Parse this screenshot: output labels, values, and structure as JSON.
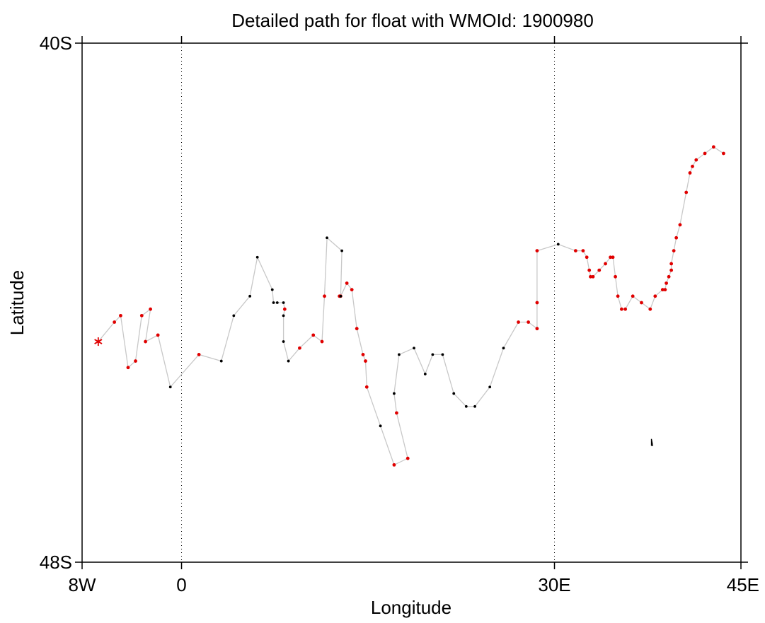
{
  "chart_data": {
    "type": "line",
    "title": "Detailed path for float with WMOId: 1900980",
    "xlabel": "Longitude",
    "ylabel": "Latitude",
    "xlim": [
      -8,
      45
    ],
    "ylim": [
      -48,
      -40
    ],
    "x_ticks": [
      {
        "value": -8,
        "label": "8W"
      },
      {
        "value": 0,
        "label": "0"
      },
      {
        "value": 30,
        "label": "30E"
      },
      {
        "value": 45,
        "label": "45E"
      }
    ],
    "y_ticks": [
      {
        "value": -40,
        "label": "40S"
      },
      {
        "value": -48,
        "label": "48S"
      }
    ],
    "grid": "dotted vertical lines at 0 and 30E",
    "start_marker": {
      "lon": -6.7,
      "lat": -44.6
    },
    "path": [
      {
        "lon": -6.7,
        "lat": -44.6,
        "c": "r"
      },
      {
        "lon": -5.4,
        "lat": -44.3,
        "c": "r"
      },
      {
        "lon": -4.9,
        "lat": -44.2,
        "c": "r"
      },
      {
        "lon": -4.3,
        "lat": -45.0,
        "c": "r"
      },
      {
        "lon": -3.7,
        "lat": -44.9,
        "c": "r"
      },
      {
        "lon": -3.2,
        "lat": -44.2,
        "c": "r"
      },
      {
        "lon": -2.5,
        "lat": -44.1,
        "c": "r"
      },
      {
        "lon": -2.9,
        "lat": -44.6,
        "c": "r"
      },
      {
        "lon": -1.9,
        "lat": -44.5,
        "c": "r"
      },
      {
        "lon": -0.9,
        "lat": -45.3,
        "c": "k"
      },
      {
        "lon": 1.4,
        "lat": -44.8,
        "c": "r"
      },
      {
        "lon": 3.2,
        "lat": -44.9,
        "c": "k"
      },
      {
        "lon": 4.2,
        "lat": -44.2,
        "c": "k"
      },
      {
        "lon": 5.5,
        "lat": -43.9,
        "c": "k"
      },
      {
        "lon": 6.1,
        "lat": -43.3,
        "c": "k"
      },
      {
        "lon": 7.3,
        "lat": -43.8,
        "c": "k"
      },
      {
        "lon": 7.4,
        "lat": -44.0,
        "c": "k"
      },
      {
        "lon": 7.7,
        "lat": -44.0,
        "c": "k"
      },
      {
        "lon": 8.2,
        "lat": -44.0,
        "c": "k"
      },
      {
        "lon": 8.3,
        "lat": -44.1,
        "c": "r"
      },
      {
        "lon": 8.2,
        "lat": -44.2,
        "c": "k"
      },
      {
        "lon": 8.2,
        "lat": -44.6,
        "c": "k"
      },
      {
        "lon": 8.6,
        "lat": -44.9,
        "c": "k"
      },
      {
        "lon": 9.5,
        "lat": -44.7,
        "c": "r"
      },
      {
        "lon": 10.6,
        "lat": -44.5,
        "c": "r"
      },
      {
        "lon": 11.3,
        "lat": -44.6,
        "c": "r"
      },
      {
        "lon": 11.5,
        "lat": -43.9,
        "c": "r"
      },
      {
        "lon": 11.7,
        "lat": -43.0,
        "c": "k"
      },
      {
        "lon": 12.9,
        "lat": -43.2,
        "c": "k"
      },
      {
        "lon": 12.8,
        "lat": -43.9,
        "c": "r"
      },
      {
        "lon": 12.7,
        "lat": -43.9,
        "c": "r"
      },
      {
        "lon": 12.8,
        "lat": -43.9,
        "c": "k"
      },
      {
        "lon": 13.3,
        "lat": -43.7,
        "c": "r"
      },
      {
        "lon": 13.7,
        "lat": -43.8,
        "c": "r"
      },
      {
        "lon": 14.1,
        "lat": -44.4,
        "c": "r"
      },
      {
        "lon": 14.6,
        "lat": -44.8,
        "c": "r"
      },
      {
        "lon": 14.8,
        "lat": -44.9,
        "c": "r"
      },
      {
        "lon": 14.9,
        "lat": -45.3,
        "c": "r"
      },
      {
        "lon": 16.0,
        "lat": -45.9,
        "c": "k"
      },
      {
        "lon": 17.1,
        "lat": -46.5,
        "c": "r"
      },
      {
        "lon": 18.2,
        "lat": -46.4,
        "c": "r"
      },
      {
        "lon": 17.3,
        "lat": -45.7,
        "c": "r"
      },
      {
        "lon": 17.1,
        "lat": -45.4,
        "c": "k"
      },
      {
        "lon": 17.5,
        "lat": -44.8,
        "c": "k"
      },
      {
        "lon": 18.7,
        "lat": -44.7,
        "c": "k"
      },
      {
        "lon": 19.6,
        "lat": -45.1,
        "c": "k"
      },
      {
        "lon": 20.2,
        "lat": -44.8,
        "c": "k"
      },
      {
        "lon": 21.0,
        "lat": -44.8,
        "c": "k"
      },
      {
        "lon": 21.9,
        "lat": -45.4,
        "c": "k"
      },
      {
        "lon": 22.9,
        "lat": -45.6,
        "c": "k"
      },
      {
        "lon": 23.6,
        "lat": -45.6,
        "c": "k"
      },
      {
        "lon": 24.8,
        "lat": -45.3,
        "c": "k"
      },
      {
        "lon": 25.9,
        "lat": -44.7,
        "c": "k"
      },
      {
        "lon": 27.1,
        "lat": -44.3,
        "c": "r"
      },
      {
        "lon": 27.9,
        "lat": -44.3,
        "c": "r"
      },
      {
        "lon": 28.6,
        "lat": -44.4,
        "c": "r"
      },
      {
        "lon": 28.6,
        "lat": -44.0,
        "c": "r"
      },
      {
        "lon": 28.6,
        "lat": -43.2,
        "c": "r"
      },
      {
        "lon": 30.3,
        "lat": -43.1,
        "c": "k"
      },
      {
        "lon": 31.7,
        "lat": -43.2,
        "c": "r"
      },
      {
        "lon": 32.3,
        "lat": -43.2,
        "c": "r"
      },
      {
        "lon": 32.6,
        "lat": -43.3,
        "c": "r"
      },
      {
        "lon": 32.8,
        "lat": -43.5,
        "c": "r"
      },
      {
        "lon": 32.9,
        "lat": -43.6,
        "c": "r"
      },
      {
        "lon": 33.1,
        "lat": -43.6,
        "c": "r"
      },
      {
        "lon": 33.6,
        "lat": -43.5,
        "c": "r"
      },
      {
        "lon": 34.1,
        "lat": -43.4,
        "c": "r"
      },
      {
        "lon": 34.5,
        "lat": -43.3,
        "c": "r"
      },
      {
        "lon": 34.7,
        "lat": -43.3,
        "c": "r"
      },
      {
        "lon": 34.9,
        "lat": -43.6,
        "c": "r"
      },
      {
        "lon": 35.1,
        "lat": -43.9,
        "c": "r"
      },
      {
        "lon": 35.4,
        "lat": -44.1,
        "c": "r"
      },
      {
        "lon": 35.7,
        "lat": -44.1,
        "c": "r"
      },
      {
        "lon": 36.3,
        "lat": -43.9,
        "c": "r"
      },
      {
        "lon": 37.0,
        "lat": -44.0,
        "c": "r"
      },
      {
        "lon": 37.7,
        "lat": -44.1,
        "c": "r"
      },
      {
        "lon": 38.1,
        "lat": -43.9,
        "c": "r"
      },
      {
        "lon": 38.7,
        "lat": -43.8,
        "c": "r"
      },
      {
        "lon": 38.9,
        "lat": -43.8,
        "c": "r"
      },
      {
        "lon": 39.0,
        "lat": -43.7,
        "c": "r"
      },
      {
        "lon": 39.2,
        "lat": -43.6,
        "c": "r"
      },
      {
        "lon": 39.4,
        "lat": -43.5,
        "c": "r"
      },
      {
        "lon": 39.4,
        "lat": -43.4,
        "c": "r"
      },
      {
        "lon": 39.6,
        "lat": -43.2,
        "c": "r"
      },
      {
        "lon": 39.8,
        "lat": -43.0,
        "c": "r"
      },
      {
        "lon": 40.1,
        "lat": -42.8,
        "c": "r"
      },
      {
        "lon": 40.6,
        "lat": -42.3,
        "c": "r"
      },
      {
        "lon": 40.9,
        "lat": -42.0,
        "c": "r"
      },
      {
        "lon": 41.1,
        "lat": -41.9,
        "c": "r"
      },
      {
        "lon": 41.4,
        "lat": -41.8,
        "c": "r"
      },
      {
        "lon": 42.1,
        "lat": -41.7,
        "c": "r"
      },
      {
        "lon": 42.8,
        "lat": -41.6,
        "c": "r"
      },
      {
        "lon": 43.6,
        "lat": -41.7,
        "c": "r"
      }
    ],
    "line_color": "#c8c8c8",
    "red_color": "#e00000",
    "black_color": "#000000",
    "coastline_outline": [
      [
        37.8,
        -46.1
      ],
      [
        37.9,
        -46.2
      ],
      [
        37.8,
        -46.2
      ]
    ]
  }
}
